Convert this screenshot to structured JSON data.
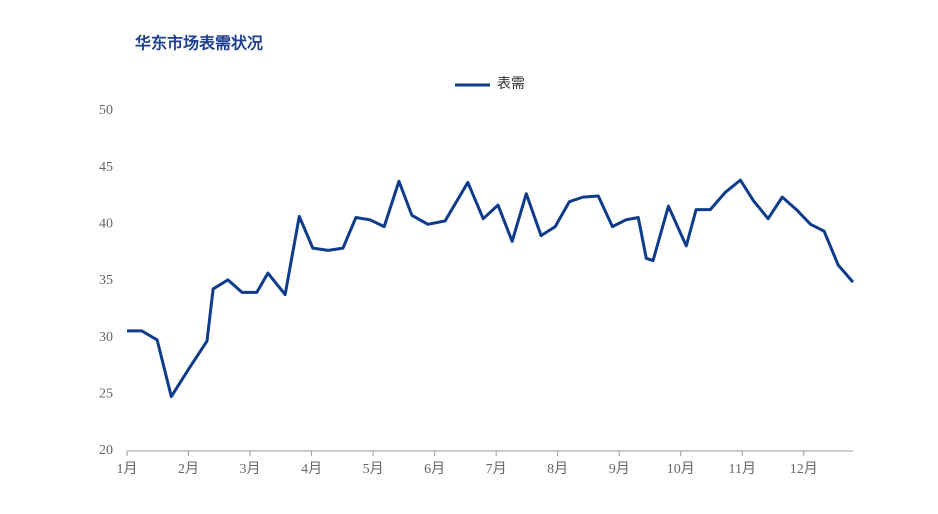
{
  "chart_data": {
    "type": "line",
    "title": "华东市场表需状况",
    "x": [
      1.0,
      1.24,
      1.49,
      1.72,
      2.01,
      2.3,
      2.4,
      2.64,
      2.87,
      3.11,
      3.29,
      3.57,
      3.8,
      4.02,
      4.27,
      4.51,
      4.72,
      4.95,
      5.18,
      5.42,
      5.63,
      5.89,
      6.17,
      6.54,
      6.79,
      7.03,
      7.26,
      7.49,
      7.73,
      7.96,
      8.19,
      8.41,
      8.66,
      8.89,
      9.11,
      9.31,
      9.44,
      9.55,
      9.8,
      10.09,
      10.25,
      10.48,
      10.72,
      10.97,
      11.18,
      11.42,
      11.65,
      11.88,
      12.11,
      12.33,
      12.56,
      12.8
    ],
    "series": [
      {
        "name": "表需",
        "color": "#0e3b8a",
        "values": [
          30.6,
          30.6,
          29.8,
          24.8,
          27.3,
          29.7,
          34.3,
          35.1,
          34.0,
          34.0,
          35.7,
          33.8,
          40.7,
          37.9,
          37.7,
          37.9,
          40.6,
          40.4,
          39.8,
          43.8,
          40.8,
          40.0,
          40.3,
          43.7,
          40.5,
          41.7,
          38.5,
          42.7,
          39.0,
          39.8,
          42.0,
          42.4,
          42.5,
          39.8,
          40.4,
          40.6,
          37.0,
          36.8,
          41.6,
          38.1,
          41.3,
          41.3,
          42.8,
          43.9,
          42.1,
          40.5,
          42.4,
          41.3,
          40.0,
          39.4,
          36.4,
          34.9
        ]
      }
    ],
    "xlim": [
      1,
      12.8
    ],
    "xticks": [
      {
        "value": 1,
        "label": "1月"
      },
      {
        "value": 2,
        "label": "2月"
      },
      {
        "value": 3,
        "label": "3月"
      },
      {
        "value": 4,
        "label": "4月"
      },
      {
        "value": 5,
        "label": "5月"
      },
      {
        "value": 6,
        "label": "6月"
      },
      {
        "value": 7,
        "label": "7月"
      },
      {
        "value": 8,
        "label": "8月"
      },
      {
        "value": 9,
        "label": "9月"
      },
      {
        "value": 10,
        "label": "10月"
      },
      {
        "value": 11,
        "label": "11月"
      },
      {
        "value": 12,
        "label": "12月"
      }
    ],
    "ylim": [
      20,
      50
    ],
    "yticks": [
      20,
      25,
      30,
      35,
      40,
      45,
      50
    ],
    "legend": "top"
  }
}
